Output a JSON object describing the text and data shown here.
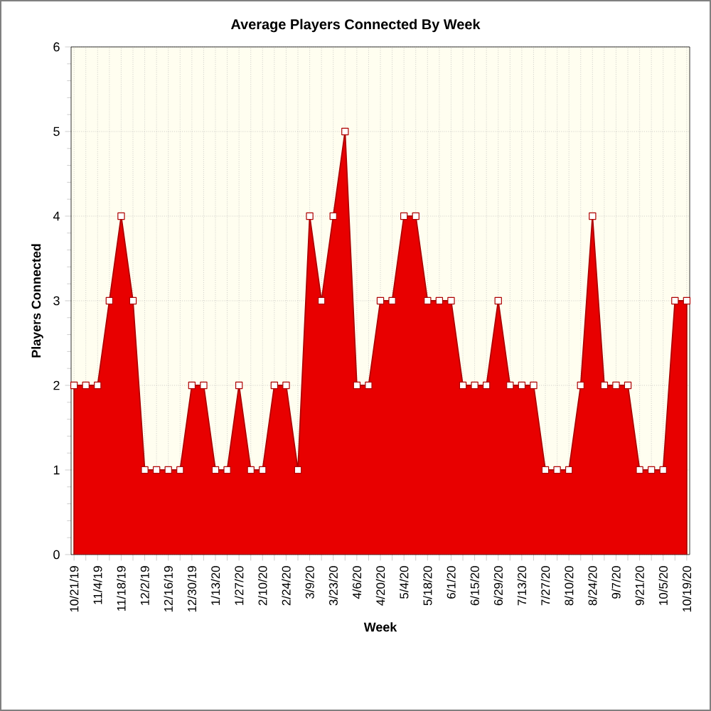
{
  "chart_data": {
    "type": "area",
    "title": "Average Players Connected By Week",
    "xlabel": "Week",
    "ylabel": "Players Connected",
    "categories": [
      "10/21/19",
      null,
      "11/4/19",
      null,
      "11/18/19",
      null,
      "12/2/19",
      null,
      "12/16/19",
      null,
      "12/30/19",
      null,
      "1/13/20",
      null,
      "1/27/20",
      null,
      "2/10/20",
      null,
      "2/24/20",
      null,
      "3/9/20",
      null,
      "3/23/20",
      null,
      "4/6/20",
      null,
      "4/20/20",
      null,
      "5/4/20",
      null,
      "5/18/20",
      null,
      "6/1/20",
      null,
      "6/15/20",
      null,
      "6/29/20",
      null,
      "7/13/20",
      null,
      "7/27/20",
      null,
      "8/10/20",
      null,
      "8/24/20",
      null,
      "9/7/20",
      null,
      "9/21/20",
      null,
      "10/5/20",
      null,
      "10/19/20"
    ],
    "series": [
      {
        "color": "#e80000",
        "values": [
          2,
          2,
          2,
          3,
          4,
          3,
          1,
          1,
          1,
          1,
          2,
          2,
          1,
          1,
          2,
          1,
          1,
          2,
          2,
          1,
          4,
          3,
          4,
          5,
          2,
          2,
          3,
          3,
          4,
          4,
          3,
          3,
          3,
          2,
          2,
          2,
          3,
          2,
          2,
          2,
          1,
          1,
          1,
          2,
          4,
          2,
          2,
          2,
          1,
          1,
          1,
          3,
          3
        ]
      }
    ],
    "ylim": [
      0,
      6
    ],
    "yticks": [
      0,
      1,
      2,
      3,
      4,
      5,
      6
    ],
    "grid": true,
    "marker": "square"
  }
}
